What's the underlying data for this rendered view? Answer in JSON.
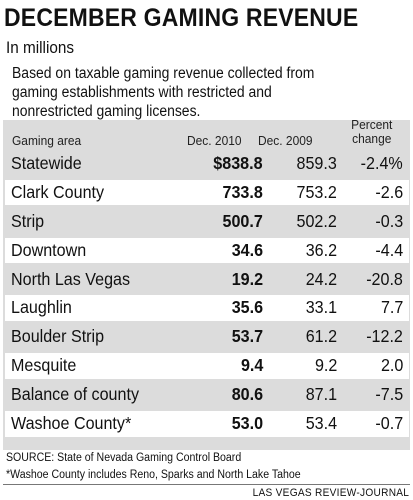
{
  "chart_data": {
    "type": "table",
    "title": "DECEMBER GAMING REVENUE",
    "subtitle": "In millions",
    "description_lines": [
      "Based on taxable gaming revenue collected from",
      "gaming establishments with restricted and",
      "nonrestricted gaming licenses."
    ],
    "columns": [
      "Gaming area",
      "Dec. 2010",
      "Dec. 2009",
      "Percent change"
    ],
    "rows": [
      {
        "area": "Statewide",
        "dec2010": "$838.8",
        "dec2009": "859.3",
        "pct": "-2.4%"
      },
      {
        "area": "Clark County",
        "dec2010": "733.8",
        "dec2009": "753.2",
        "pct": "-2.6"
      },
      {
        "area": "Strip",
        "dec2010": "500.7",
        "dec2009": "502.2",
        "pct": "-0.3"
      },
      {
        "area": "Downtown",
        "dec2010": "34.6",
        "dec2009": "36.2",
        "pct": "-4.4"
      },
      {
        "area": "North Las Vegas",
        "dec2010": "19.2",
        "dec2009": "24.2",
        "pct": "-20.8"
      },
      {
        "area": "Laughlin",
        "dec2010": "35.6",
        "dec2009": "33.1",
        "pct": "7.7"
      },
      {
        "area": "Boulder Strip",
        "dec2010": "53.7",
        "dec2009": "61.2",
        "pct": "-12.2"
      },
      {
        "area": "Mesquite",
        "dec2010": "9.4",
        "dec2009": "9.2",
        "pct": "2.0"
      },
      {
        "area": "Balance of county",
        "dec2010": "80.6",
        "dec2009": "87.1",
        "pct": "-7.5"
      },
      {
        "area": "Washoe County*",
        "dec2010": "53.0",
        "dec2009": "53.4",
        "pct": "-0.7"
      }
    ],
    "source": "SOURCE: State of Nevada Gaming Control Board",
    "footnote": "*Washoe County includes Reno, Sparks and North Lake Tahoe",
    "credit": "LAS VEGAS REVIEW-JOURNAL"
  },
  "colors": {
    "band": "#dcdcdc",
    "row_highlight": "#ffffff"
  }
}
